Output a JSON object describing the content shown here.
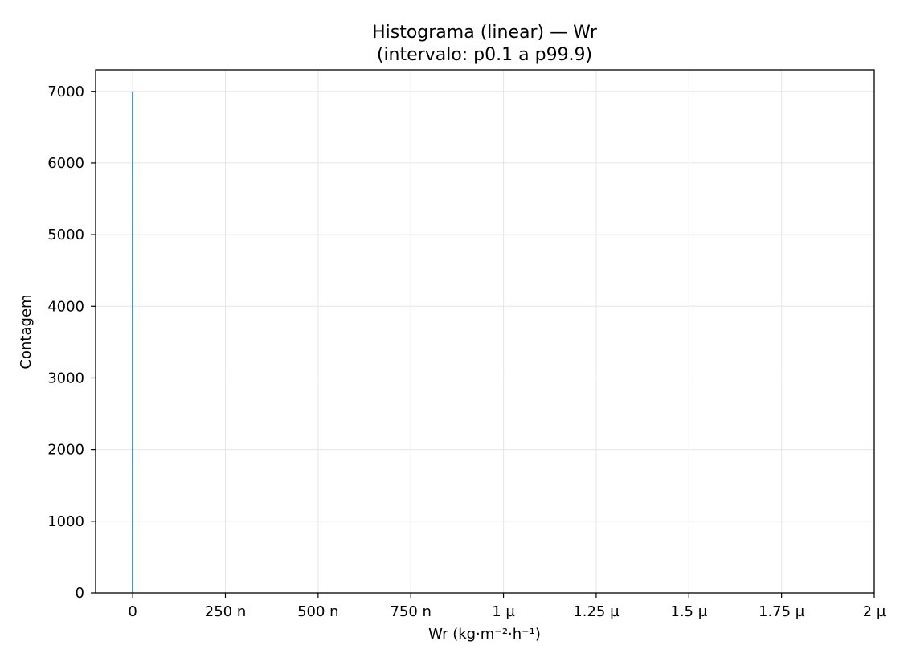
{
  "chart_data": {
    "type": "bar",
    "title": "Histograma (linear) — Wr",
    "subtitle": "(intervalo: p0.1 a p99.9)",
    "xlabel": "Wr (kg·m⁻²·h⁻¹)",
    "ylabel": "Contagem",
    "xlim": [
      -1e-07,
      2e-06
    ],
    "ylim": [
      0,
      7300
    ],
    "x_ticks": [
      0,
      2.5e-07,
      5e-07,
      7.5e-07,
      1e-06,
      1.25e-06,
      1.5e-06,
      1.75e-06,
      2e-06
    ],
    "x_tick_labels": [
      "0",
      "250 n",
      "500 n",
      "750 n",
      "1 µ",
      "1.25 µ",
      "1.5 µ",
      "1.75 µ",
      "2 µ"
    ],
    "y_ticks": [
      0,
      1000,
      2000,
      3000,
      4000,
      5000,
      6000,
      7000
    ],
    "y_tick_labels": [
      "0",
      "1000",
      "2000",
      "3000",
      "4000",
      "5000",
      "6000",
      "7000"
    ],
    "grid": true,
    "bar_color": "#1f77b4",
    "bins": [
      {
        "x0": -2e-09,
        "x1": 2e-09,
        "count": 7000
      }
    ]
  }
}
